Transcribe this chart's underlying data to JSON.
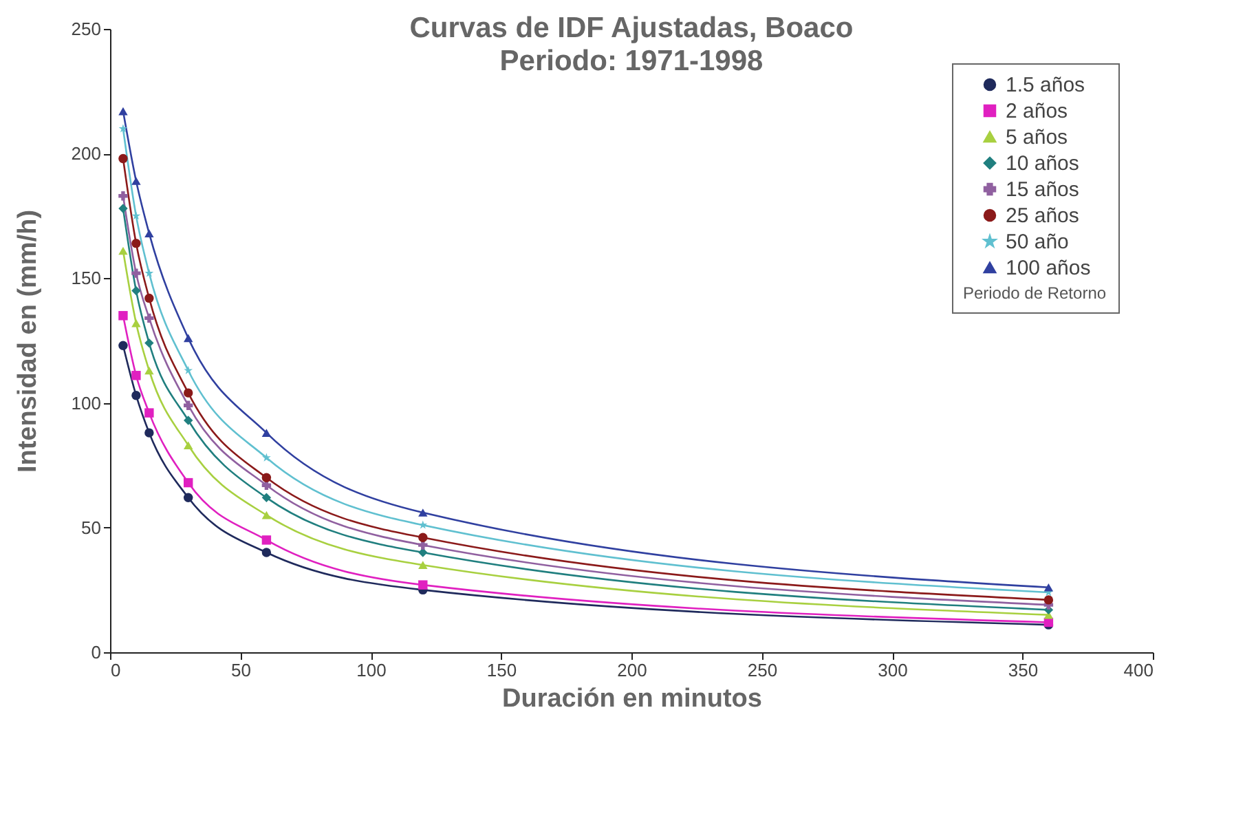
{
  "chart_data": {
    "type": "line",
    "title": "Curvas de IDF Ajustadas, Boaco",
    "subtitle": "Periodo: 1971-1998",
    "xlabel": "Duración en minutos",
    "ylabel": "Intensidad en  (mm/h)",
    "legend_title": "Periodo de Retorno",
    "x": [
      5,
      10,
      15,
      30,
      60,
      120,
      360
    ],
    "xlim": [
      0,
      400
    ],
    "xticks": [
      0,
      50,
      100,
      150,
      200,
      250,
      300,
      350,
      400
    ],
    "ylim": [
      0,
      250
    ],
    "yticks": [
      0,
      50,
      100,
      150,
      200,
      250
    ],
    "grid": false,
    "legend": "top right",
    "line_style": "solid",
    "series": [
      {
        "name": "1.5 años",
        "color": "#1f2a5c",
        "marker": "circle",
        "values": [
          123,
          103,
          88,
          62,
          40,
          25,
          11
        ]
      },
      {
        "name": "2 años",
        "color": "#e020c0",
        "marker": "square",
        "values": [
          135,
          111,
          96,
          68,
          45,
          27,
          12
        ]
      },
      {
        "name": "5 años",
        "color": "#a8d040",
        "marker": "triangle",
        "values": [
          161,
          132,
          113,
          83,
          55,
          35,
          15
        ]
      },
      {
        "name": "10 años",
        "color": "#207f7f",
        "marker": "diamond",
        "values": [
          178,
          145,
          124,
          93,
          62,
          40,
          17
        ]
      },
      {
        "name": "15 años",
        "color": "#9060a0",
        "marker": "cross",
        "values": [
          183,
          152,
          134,
          99,
          67,
          43,
          19
        ]
      },
      {
        "name": "25 años",
        "color": "#8b1a1a",
        "marker": "circle",
        "values": [
          198,
          164,
          142,
          104,
          70,
          46,
          21
        ]
      },
      {
        "name": "50 año",
        "color": "#60c0d0",
        "marker": "star",
        "values": [
          210,
          175,
          152,
          113,
          78,
          51,
          24
        ]
      },
      {
        "name": "100 años",
        "color": "#3040a0",
        "marker": "triangle",
        "values": [
          217,
          189,
          168,
          126,
          88,
          56,
          26
        ]
      }
    ]
  }
}
